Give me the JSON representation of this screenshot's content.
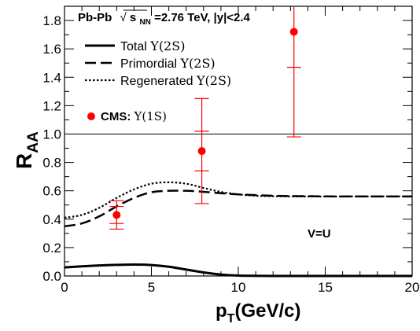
{
  "chart_data": {
    "type": "line",
    "x_axis": {
      "title_main": "p",
      "title_sub": "T",
      "title_rest": "(GeV/c)",
      "range": [
        0,
        20
      ],
      "major_ticks": [
        0,
        5,
        10,
        15,
        20
      ],
      "tick_labels": [
        "0",
        "5",
        "10",
        "15",
        "20"
      ]
    },
    "y_axis": {
      "title_main": "R",
      "title_sub": "AA",
      "range": [
        0,
        1.9
      ],
      "major_ticks": [
        0,
        0.2,
        0.4,
        0.6,
        0.8,
        1.0,
        1.2,
        1.4,
        1.6,
        1.8
      ],
      "tick_labels": [
        "0.0",
        "0.2",
        "0.4",
        "0.6",
        "0.8",
        "1.0",
        "1.2",
        "1.4",
        "1.6",
        "1.8"
      ]
    },
    "reference_line_y": 1.0,
    "header": {
      "system": "Pb-Pb",
      "sqrt_symbol": "√",
      "s_label": "s",
      "s_sub": "NN",
      "energy_text": "=2.76 TeV, |y|<2.4"
    },
    "series": [
      {
        "name": "Total Υ(2S)",
        "label_text": "Total ",
        "label_particle": "Υ(2S)",
        "style": "solid",
        "color": "#000000",
        "x": [
          0,
          1,
          2,
          3,
          4,
          5,
          6,
          7,
          8,
          9,
          10,
          11,
          12,
          14,
          16,
          18,
          20
        ],
        "y": [
          0.06,
          0.068,
          0.074,
          0.078,
          0.08,
          0.077,
          0.065,
          0.045,
          0.025,
          0.01,
          0.003,
          0.001,
          0.0,
          0.0,
          0.0,
          0.0,
          0.0
        ]
      },
      {
        "name": "Primordial Υ(2S)",
        "label_text": "Primordial ",
        "label_particle": "Υ(2S)",
        "style": "dashed",
        "color": "#000000",
        "x": [
          0,
          1,
          2,
          3,
          4,
          5,
          6,
          7,
          8,
          9,
          10,
          12,
          14,
          16,
          18,
          20
        ],
        "y": [
          0.35,
          0.37,
          0.42,
          0.49,
          0.55,
          0.59,
          0.6,
          0.6,
          0.593,
          0.583,
          0.575,
          0.565,
          0.562,
          0.56,
          0.56,
          0.56
        ]
      },
      {
        "name": "Regenerated Υ(2S)",
        "label_text": "Regenerated ",
        "label_particle": "Υ(2S)",
        "style": "dotted",
        "color": "#000000",
        "x": [
          0,
          1,
          2,
          3,
          4,
          5,
          6,
          7,
          8,
          9,
          10,
          11,
          12,
          14,
          16,
          18,
          20
        ],
        "y": [
          0.41,
          0.43,
          0.48,
          0.55,
          0.61,
          0.65,
          0.66,
          0.65,
          0.62,
          0.592,
          0.575,
          0.565,
          0.562,
          0.56,
          0.56,
          0.56,
          0.56
        ]
      }
    ],
    "data_points": {
      "name": "CMS: Υ(1S)",
      "label_text": "CMS: ",
      "label_particle": "Υ(1S)",
      "color": "#ff0000",
      "marker": "filled-circle",
      "points": [
        {
          "x": 3.0,
          "y": 0.43,
          "stat_err": 0.06,
          "syst_err": 0.1
        },
        {
          "x": 7.9,
          "y": 0.88,
          "stat_err": 0.14,
          "syst_err": 0.37
        },
        {
          "x": 13.2,
          "y": 1.72,
          "stat_err": 0.25,
          "syst_err": 0.74
        }
      ]
    },
    "annotation": "V=U",
    "grid": false,
    "legend_position": "top-left"
  }
}
